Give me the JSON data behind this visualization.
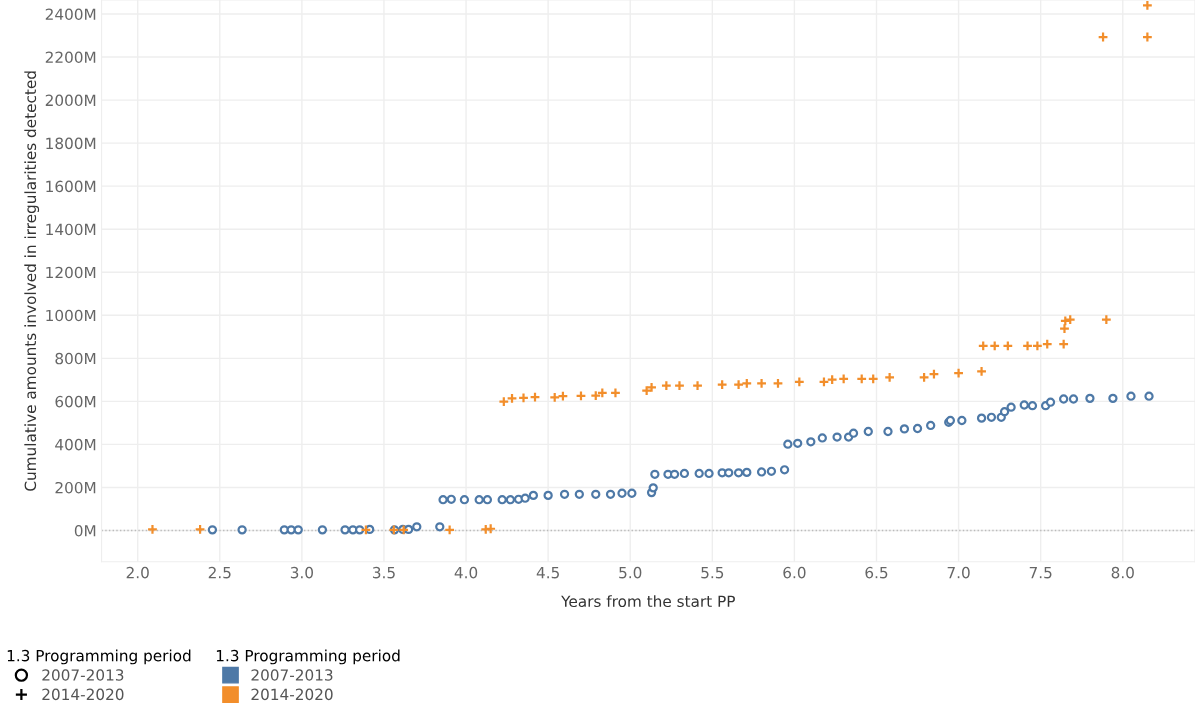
{
  "chart_data": {
    "type": "scatter",
    "xlabel": "Years from the start PP",
    "ylabel": "Cumulative amounts involved in irregularities detected",
    "legend_title": "1.3 Programming period",
    "legend": "bottom left",
    "grid": true,
    "xlim": [
      1.78,
      8.44
    ],
    "xticks": [
      {
        "value": 2,
        "label": "2.0"
      },
      2.5,
      {
        "value": 3,
        "label": "3.0"
      },
      3.5,
      {
        "value": 4,
        "label": "4.0"
      },
      4.5,
      {
        "value": 5,
        "label": "5.0"
      },
      5.5,
      {
        "value": 6,
        "label": "6.0"
      },
      6.5,
      {
        "value": 7,
        "label": "7.0"
      },
      7.5,
      {
        "value": 8,
        "label": "8.0"
      }
    ],
    "ylim": [
      -145,
      2465
    ],
    "yticks": [
      {
        "value": 0,
        "label": "0M"
      },
      {
        "value": 200,
        "label": "200M"
      },
      {
        "value": 400,
        "label": "400M"
      },
      {
        "value": 600,
        "label": "600M"
      },
      {
        "value": 800,
        "label": "800M"
      },
      {
        "value": 1000,
        "label": "1000M"
      },
      {
        "value": 1200,
        "label": "1200M"
      },
      {
        "value": 1400,
        "label": "1400M"
      },
      {
        "value": 1600,
        "label": "1600M"
      },
      {
        "value": 1800,
        "label": "1800M"
      },
      {
        "value": 2000,
        "label": "2000M"
      },
      {
        "value": 2200,
        "label": "2200M"
      },
      {
        "value": 2400,
        "label": "2400M"
      }
    ],
    "ref_lines": [
      {
        "axis": "y",
        "value": 0,
        "color": "#bbbbbb",
        "line_style": "dotted"
      }
    ],
    "series": [
      {
        "name": "2007-2013",
        "color": "#4e79a7",
        "marker": "circle",
        "x": [
          2.455,
          2.636,
          2.893,
          2.935,
          2.978,
          3.125,
          3.263,
          3.311,
          3.352,
          3.413,
          3.564,
          3.615,
          3.65,
          3.7,
          3.84,
          3.86,
          3.91,
          3.99,
          4.08,
          4.13,
          4.22,
          4.27,
          4.32,
          4.36,
          4.41,
          4.5,
          4.6,
          4.69,
          4.79,
          4.88,
          4.95,
          5.01,
          5.13,
          5.14,
          5.15,
          5.23,
          5.27,
          5.33,
          5.42,
          5.48,
          5.56,
          5.6,
          5.66,
          5.71,
          5.8,
          5.86,
          5.94,
          5.96,
          6.02,
          6.1,
          6.17,
          6.26,
          6.33,
          6.36,
          6.45,
          6.57,
          6.67,
          6.75,
          6.83,
          6.94,
          6.95,
          7.02,
          7.14,
          7.2,
          7.26,
          7.28,
          7.32,
          7.4,
          7.45,
          7.53,
          7.56,
          7.64,
          7.7,
          7.8,
          7.94,
          8.05,
          8.16
        ],
        "values": [
          3,
          3,
          3,
          3,
          3,
          3,
          3,
          3,
          3,
          5,
          3,
          5,
          5,
          17,
          17,
          143,
          145,
          143,
          143,
          143,
          143,
          143,
          145,
          150,
          163,
          163,
          168,
          168,
          168,
          168,
          173,
          173,
          176,
          198,
          261,
          261,
          261,
          265,
          265,
          265,
          268,
          268,
          268,
          270,
          272,
          275,
          282,
          401,
          405,
          412,
          430,
          434,
          434,
          452,
          460,
          460,
          472,
          474,
          488,
          503,
          511,
          511,
          522,
          526,
          526,
          552,
          573,
          583,
          580,
          580,
          596,
          611,
          611,
          614,
          614,
          624,
          624
        ]
      },
      {
        "name": "2014-2020",
        "color": "#f28e2b",
        "marker": "cross",
        "x": [
          2.09,
          2.38,
          3.39,
          3.56,
          3.62,
          3.9,
          4.12,
          4.15,
          4.23,
          4.28,
          4.35,
          4.42,
          4.54,
          4.59,
          4.7,
          4.79,
          4.83,
          4.91,
          5.1,
          5.13,
          5.22,
          5.3,
          5.41,
          5.56,
          5.66,
          5.71,
          5.8,
          5.9,
          6.03,
          6.18,
          6.23,
          6.3,
          6.41,
          6.48,
          6.58,
          6.79,
          6.85,
          7.0,
          7.14,
          7.15,
          7.22,
          7.3,
          7.42,
          7.48,
          7.54,
          7.64,
          7.645,
          7.65,
          7.68,
          7.9,
          7.88,
          8.15,
          8.15
        ],
        "values": [
          5,
          5,
          3,
          3,
          3,
          3,
          5,
          8,
          599,
          614,
          616,
          620,
          619,
          624,
          625,
          627,
          639,
          639,
          650,
          665,
          673,
          673,
          673,
          678,
          678,
          684,
          684,
          684,
          691,
          691,
          701,
          704,
          704,
          704,
          711,
          711,
          727,
          731,
          739,
          858,
          858,
          858,
          858,
          858,
          866,
          866,
          938,
          974,
          980,
          980,
          2293,
          2293,
          2440
        ]
      }
    ]
  }
}
